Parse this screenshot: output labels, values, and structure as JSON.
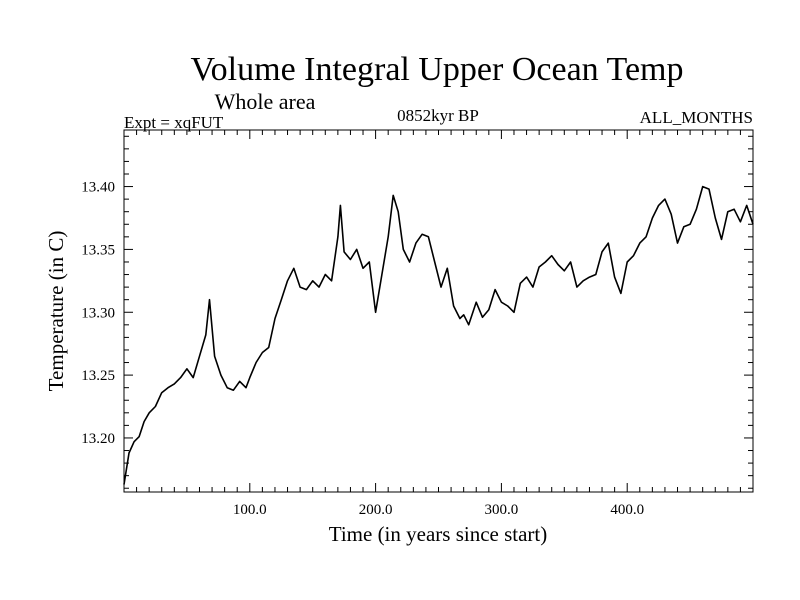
{
  "chart_data": {
    "type": "line",
    "title": "Volume Integral Upper Ocean Temp",
    "subtitle": "Whole area",
    "expt_label": "Expt = xqFUT",
    "period_label": "0852kyr BP",
    "months_label": "ALL_MONTHS",
    "xlabel": "Time (in years since start)",
    "ylabel": "Temperature (in C)",
    "xlim": [
      0,
      500
    ],
    "ylim": [
      13.157,
      13.445
    ],
    "x_ticks": [
      {
        "value": 100,
        "label": "100.0"
      },
      {
        "value": 200,
        "label": "200.0"
      },
      {
        "value": 300,
        "label": "300.0"
      },
      {
        "value": 400,
        "label": "400.0"
      }
    ],
    "y_ticks": [
      {
        "value": 13.2,
        "label": "13.20"
      },
      {
        "value": 13.25,
        "label": "13.25"
      },
      {
        "value": 13.3,
        "label": "13.30"
      },
      {
        "value": 13.35,
        "label": "13.35"
      },
      {
        "value": 13.4,
        "label": "13.40"
      }
    ],
    "series": [
      {
        "name": "Volume Integral Upper Ocean Temp",
        "x": [
          0,
          4,
          8,
          12,
          16,
          20,
          25,
          30,
          35,
          40,
          45,
          50,
          55,
          60,
          65,
          68,
          72,
          77,
          82,
          87,
          92,
          97,
          100,
          105,
          110,
          115,
          120,
          125,
          130,
          135,
          140,
          145,
          150,
          155,
          160,
          165,
          170,
          172,
          175,
          180,
          185,
          190,
          195,
          200,
          205,
          210,
          214,
          218,
          222,
          227,
          232,
          237,
          242,
          247,
          252,
          257,
          262,
          267,
          270,
          274,
          280,
          285,
          290,
          295,
          300,
          305,
          310,
          315,
          320,
          325,
          330,
          335,
          340,
          345,
          350,
          355,
          360,
          365,
          370,
          375,
          380,
          385,
          390,
          395,
          400,
          405,
          410,
          415,
          420,
          425,
          430,
          435,
          440,
          445,
          450,
          455,
          460,
          465,
          470,
          475,
          480,
          485,
          490,
          495,
          500
        ],
        "y": [
          13.163,
          13.188,
          13.197,
          13.201,
          13.213,
          13.22,
          13.225,
          13.236,
          13.24,
          13.243,
          13.248,
          13.255,
          13.248,
          13.265,
          13.282,
          13.31,
          13.265,
          13.25,
          13.24,
          13.238,
          13.245,
          13.24,
          13.248,
          13.26,
          13.268,
          13.272,
          13.295,
          13.31,
          13.325,
          13.335,
          13.32,
          13.318,
          13.325,
          13.32,
          13.33,
          13.325,
          13.36,
          13.385,
          13.348,
          13.342,
          13.35,
          13.335,
          13.34,
          13.3,
          13.33,
          13.36,
          13.393,
          13.38,
          13.35,
          13.34,
          13.355,
          13.362,
          13.36,
          13.34,
          13.32,
          13.335,
          13.305,
          13.295,
          13.298,
          13.29,
          13.308,
          13.296,
          13.302,
          13.318,
          13.308,
          13.305,
          13.3,
          13.323,
          13.328,
          13.32,
          13.336,
          13.34,
          13.345,
          13.338,
          13.333,
          13.34,
          13.32,
          13.325,
          13.328,
          13.33,
          13.348,
          13.355,
          13.328,
          13.315,
          13.34,
          13.345,
          13.355,
          13.36,
          13.375,
          13.385,
          13.39,
          13.378,
          13.355,
          13.368,
          13.37,
          13.382,
          13.4,
          13.398,
          13.375,
          13.358,
          13.38,
          13.382,
          13.372,
          13.385,
          13.37
        ]
      }
    ]
  }
}
